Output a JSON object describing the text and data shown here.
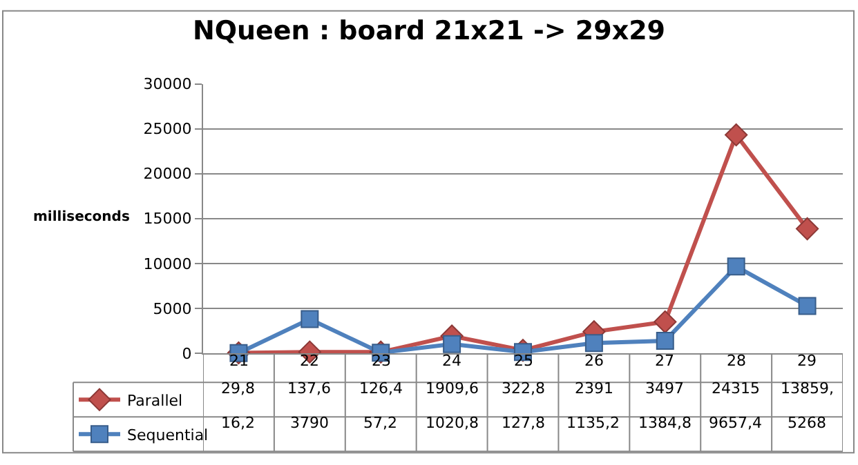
{
  "chart_data": {
    "type": "line",
    "title": "NQueen : board 21x21 -> 29x29",
    "ylabel": "milliseconds",
    "categories": [
      "21",
      "22",
      "23",
      "24",
      "25",
      "26",
      "27",
      "28",
      "29"
    ],
    "ylim": [
      0,
      30000
    ],
    "yticks": [
      0,
      5000,
      10000,
      15000,
      20000,
      25000,
      30000
    ],
    "grid": "y",
    "legend": "bottom",
    "series": [
      {
        "name": "Parallel",
        "color": "#c0504d",
        "marker": "diamond",
        "values": [
          29.8,
          137.6,
          126.4,
          1909.6,
          322.8,
          2391,
          3497,
          24315,
          13859
        ],
        "value_labels": [
          "29,8",
          "137,6",
          "126,4",
          "1909,6",
          "322,8",
          "2391",
          "3497",
          "24315",
          "13859,"
        ]
      },
      {
        "name": "Sequential",
        "color": "#4f81bd",
        "marker": "square",
        "values": [
          16.2,
          3790,
          57.2,
          1020.8,
          127.8,
          1135.2,
          1384.8,
          9657.4,
          5268
        ],
        "value_labels": [
          "16,2",
          "3790",
          "57,2",
          "1020,8",
          "127,8",
          "1135,2",
          "1384,8",
          "9657,4",
          "5268"
        ]
      }
    ]
  }
}
